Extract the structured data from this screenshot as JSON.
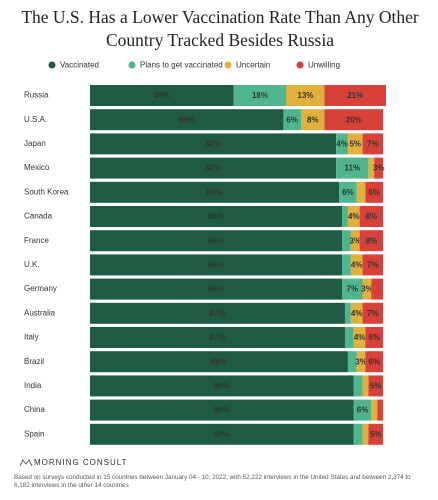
{
  "chart_data": {
    "type": "stacked-bar",
    "title": "The U.S. Has a Lower Vaccination Rate Than Any Other Country Tracked Besides Russia",
    "categories": [
      "Russia",
      "U.S.A.",
      "Japan",
      "Mexico",
      "South Korea",
      "Canada",
      "France",
      "U.K.",
      "Germany",
      "Australia",
      "Italy",
      "Brazil",
      "India",
      "China",
      "Spain"
    ],
    "series": [
      {
        "name": "Vaccinated",
        "color": "#1f5a43",
        "values": [
          49,
          66,
          84,
          84,
          85,
          86,
          86,
          86,
          86,
          87,
          87,
          88,
          90,
          90,
          90
        ],
        "value_labels": [
          "49%",
          "66%",
          "84%",
          "84%",
          "85%",
          "86%",
          "86%",
          "86%",
          "86%",
          "87%",
          "87%",
          "88%",
          "90%",
          "90%",
          "90%"
        ]
      },
      {
        "name": "Plans to get vaccinated",
        "color": "#4fb58e",
        "values": [
          18,
          6,
          4,
          11,
          6,
          2,
          3,
          3,
          7,
          2,
          3,
          3,
          3,
          6,
          3
        ],
        "value_labels": [
          "18%",
          "6%",
          "4%",
          "11%",
          "6%",
          null,
          null,
          null,
          "7%",
          null,
          null,
          null,
          null,
          "6%",
          null
        ]
      },
      {
        "name": "Uncertain",
        "color": "#e2b13c",
        "values": [
          13,
          8,
          5,
          2,
          3,
          4,
          3,
          4,
          3,
          4,
          4,
          3,
          2,
          2,
          2
        ],
        "value_labels": [
          "13%",
          "8%",
          "5%",
          null,
          null,
          "4%",
          "3%",
          "4%",
          "3%",
          "4%",
          "4%",
          "3%",
          null,
          null,
          null
        ]
      },
      {
        "name": "Unwilling",
        "color": "#d9403a",
        "values": [
          21,
          20,
          7,
          3,
          6,
          8,
          8,
          7,
          4,
          7,
          6,
          6,
          5,
          2,
          5
        ],
        "value_labels": [
          "21%",
          "20%",
          "7%",
          "3%",
          "6%",
          "8%",
          "8%",
          "7%",
          null,
          "7%",
          "6%",
          "6%",
          "5%",
          null,
          "5%"
        ]
      }
    ],
    "source_logo": "MORNING CONSULT",
    "note": "Based on surveys conducted in 15 countries between January 04 - 10, 2022, with 52,222 interviews in the United States and between 2,374 to 6,182 interviews in the other 14 countries"
  }
}
